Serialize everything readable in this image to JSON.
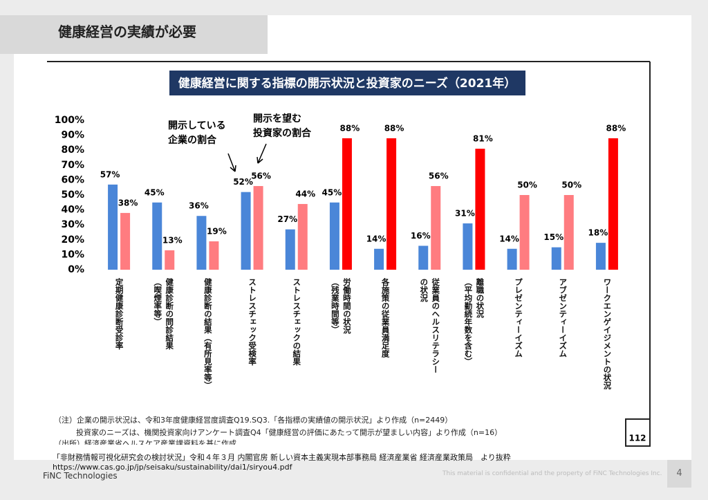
{
  "header": {
    "title": "健康経営の実績が必要"
  },
  "chart_data": {
    "type": "bar",
    "title": "健康経営に関する指標の開示状況と投資家のニーズ（2021年）",
    "categories": [
      "定期健康診断受診率",
      "健康診断の問診結果\n（喫煙率等）",
      "健康診断の結果（有所見率等）",
      "ストレスチェック受検率",
      "ストレスチェックの結果",
      "労働時間の状況\n（残業時間等）",
      "各施策の従業員満足度",
      "従業員のヘルスリテラシー\nの状況",
      "離職の状況\n（平均勤続年数を含む）",
      "プレゼンティーイズム",
      "アブゼンティーイズム",
      "ワークエンゲイジメントの状況"
    ],
    "series": [
      {
        "name": "開示している\n企業の割合",
        "color": "#4a86d8",
        "values": [
          57,
          45,
          36,
          52,
          27,
          45,
          14,
          16,
          31,
          14,
          15,
          18
        ],
        "value_labels": [
          "57%",
          "45%",
          "36%",
          "52%",
          "27%",
          "45%",
          "14%",
          "16%",
          "31%",
          "14%",
          "15%",
          "18%"
        ]
      },
      {
        "name": "開示を望む\n投資家の割合",
        "color": "#ff7c80",
        "colors": [
          "#ff7c80",
          "#ff7c80",
          "#ff7c80",
          "#ff7c80",
          "#ff7c80",
          "#ff0000",
          "#ff0000",
          "#ff7c80",
          "#ff0000",
          "#ff7c80",
          "#ff7c80",
          "#ff0000"
        ],
        "values": [
          38,
          13,
          19,
          56,
          44,
          88,
          88,
          56,
          81,
          50,
          50,
          88
        ],
        "value_labels": [
          "38%",
          "13%",
          "19%",
          "56%",
          "44%",
          "88%",
          "88%",
          "56%",
          "81%",
          "50%",
          "50%",
          "88%"
        ]
      }
    ],
    "ylim": [
      0,
      100
    ],
    "yticks": [
      {
        "value": 0,
        "label": "0%"
      },
      {
        "value": 10,
        "label": "10%"
      },
      {
        "value": 20,
        "label": "20%"
      },
      {
        "value": 30,
        "label": "30%"
      },
      {
        "value": 40,
        "label": "40%"
      },
      {
        "value": 50,
        "label": "50%"
      },
      {
        "value": 60,
        "label": "60%"
      },
      {
        "value": 70,
        "label": "70%"
      },
      {
        "value": 80,
        "label": "80%"
      },
      {
        "value": 90,
        "label": "90%"
      },
      {
        "value": 100,
        "label": "100%"
      }
    ],
    "grid": false
  },
  "notes": [
    "（注）企業の開示状況は、令和3年度健康経営度調査Q19.SQ3.「各指標の実績値の開示状況」より作成（n=2449）",
    "投資家のニーズは、機関投資家向けアンケート調査Q4「健康経営の評価にあたって開示が望ましい内容」より作成（n=16）",
    "（出所）経済産業省ヘルスケア産業課資料を基に作成"
  ],
  "page_ref": "112",
  "source": [
    "「非財務情報可視化研究会の検討状況」令和４年３月 内閣官房 新しい資本主義実現本部事務局 経済産業省 経済産業政策局　より抜粋",
    "https://www.cas.go.jp/jp/seisaku/sustainability/dai1/siryou4.pdf"
  ],
  "footer": {
    "company": "FiNC Technologies",
    "confidential": "This material is confidential and the property of FiNC Technologies Inc.",
    "page": "4"
  }
}
